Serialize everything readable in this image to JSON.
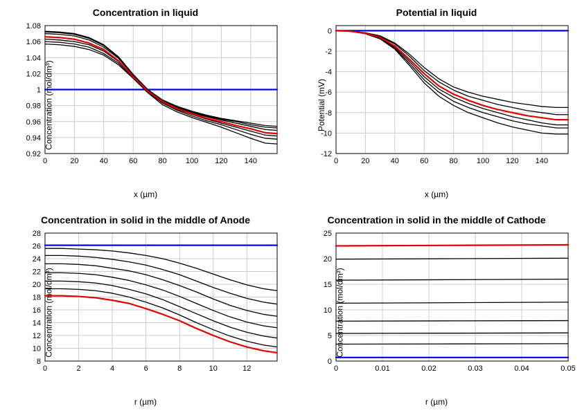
{
  "layout": {
    "cols": 2,
    "rows": 2,
    "background": "#ffffff"
  },
  "colors": {
    "grid": "#cccccc",
    "axis": "#000000",
    "blue": "#0000e0",
    "red": "#e00000",
    "black": "#000000"
  },
  "line_widths": {
    "thin": 1.3,
    "thick": 2.2
  },
  "typography": {
    "title_fontsize": 14,
    "title_weight": "bold",
    "axis_label_fontsize": 12,
    "tick_fontsize": 11,
    "font_family": "Arial, sans-serif"
  },
  "panels": [
    {
      "id": "conc_liquid",
      "title": "Concentration in liquid",
      "xlabel": "x (µm)",
      "ylabel": "Concentration (mol/dm³)",
      "xlim": [
        0,
        158
      ],
      "ylim": [
        0.92,
        1.08
      ],
      "xticks": [
        0,
        20,
        40,
        60,
        80,
        100,
        120,
        140
      ],
      "yticks": [
        0.92,
        0.94,
        0.96,
        0.98,
        1,
        1.02,
        1.04,
        1.06,
        1.08
      ],
      "series": [
        {
          "color": "blue",
          "w": "thick",
          "x": [
            0,
            158
          ],
          "y": [
            1.0,
            1.0
          ]
        },
        {
          "color": "black",
          "w": "thin",
          "x": [
            0,
            10,
            20,
            30,
            40,
            50,
            60,
            70,
            80,
            90,
            100,
            110,
            120,
            130,
            140,
            150,
            158
          ],
          "y": [
            1.057,
            1.056,
            1.054,
            1.05,
            1.043,
            1.031,
            1.014,
            0.996,
            0.981,
            0.972,
            0.965,
            0.959,
            0.953,
            0.946,
            0.939,
            0.933,
            0.932
          ]
        },
        {
          "color": "black",
          "w": "thin",
          "x": [
            0,
            10,
            20,
            30,
            40,
            50,
            60,
            70,
            80,
            90,
            100,
            110,
            120,
            130,
            140,
            150,
            158
          ],
          "y": [
            1.06,
            1.059,
            1.057,
            1.053,
            1.045,
            1.033,
            1.015,
            0.997,
            0.983,
            0.974,
            0.967,
            0.961,
            0.956,
            0.95,
            0.944,
            0.939,
            0.938
          ]
        },
        {
          "color": "black",
          "w": "thin",
          "x": [
            0,
            10,
            20,
            30,
            40,
            50,
            60,
            70,
            80,
            90,
            100,
            110,
            120,
            130,
            140,
            150,
            158
          ],
          "y": [
            1.063,
            1.062,
            1.06,
            1.056,
            1.048,
            1.035,
            1.016,
            0.998,
            0.984,
            0.975,
            0.969,
            0.963,
            0.958,
            0.953,
            0.948,
            0.943,
            0.942
          ]
        },
        {
          "color": "black",
          "w": "thin",
          "x": [
            0,
            10,
            20,
            30,
            40,
            50,
            60,
            70,
            80,
            90,
            100,
            110,
            120,
            130,
            140,
            150,
            158
          ],
          "y": [
            1.07,
            1.069,
            1.067,
            1.062,
            1.053,
            1.039,
            1.018,
            0.999,
            0.986,
            0.977,
            0.971,
            0.966,
            0.962,
            0.958,
            0.954,
            0.95,
            0.949
          ]
        },
        {
          "color": "black",
          "w": "thin",
          "x": [
            0,
            10,
            20,
            30,
            40,
            50,
            60,
            70,
            80,
            90,
            100,
            110,
            120,
            130,
            140,
            150,
            158
          ],
          "y": [
            1.072,
            1.071,
            1.069,
            1.064,
            1.055,
            1.04,
            1.019,
            0.999,
            0.986,
            0.978,
            0.972,
            0.967,
            0.963,
            0.96,
            0.956,
            0.953,
            0.952
          ]
        },
        {
          "color": "black",
          "w": "thin",
          "x": [
            0,
            10,
            20,
            30,
            40,
            50,
            60,
            70,
            80,
            90,
            100,
            110,
            120,
            130,
            140,
            150,
            158
          ],
          "y": [
            1.073,
            1.072,
            1.07,
            1.065,
            1.056,
            1.041,
            1.019,
            1.0,
            0.987,
            0.979,
            0.973,
            0.968,
            0.964,
            0.961,
            0.958,
            0.955,
            0.954
          ]
        },
        {
          "color": "red",
          "w": "thick",
          "x": [
            0,
            10,
            20,
            30,
            40,
            50,
            60,
            70,
            80,
            90,
            100,
            110,
            120,
            130,
            140,
            150,
            158
          ],
          "y": [
            1.066,
            1.065,
            1.063,
            1.058,
            1.05,
            1.036,
            1.016,
            0.998,
            0.985,
            0.976,
            0.97,
            0.964,
            0.96,
            0.955,
            0.951,
            0.946,
            0.945
          ]
        }
      ]
    },
    {
      "id": "potential_liquid",
      "title": "Potential in liquid",
      "xlabel": "x (µm)",
      "ylabel": "Potential (mV)",
      "xlim": [
        0,
        158
      ],
      "ylim": [
        -12,
        0.5
      ],
      "xticks": [
        0,
        20,
        40,
        60,
        80,
        100,
        120,
        140
      ],
      "yticks": [
        -12,
        -10,
        -8,
        -6,
        -4,
        -2,
        0
      ],
      "series": [
        {
          "color": "blue",
          "w": "thick",
          "x": [
            0,
            158
          ],
          "y": [
            0,
            0
          ]
        },
        {
          "color": "black",
          "w": "thin",
          "x": [
            0,
            10,
            20,
            30,
            40,
            50,
            60,
            70,
            80,
            90,
            100,
            110,
            120,
            130,
            140,
            150,
            158
          ],
          "y": [
            0,
            -0.05,
            -0.2,
            -0.5,
            -1.2,
            -2.3,
            -3.6,
            -4.7,
            -5.5,
            -6.0,
            -6.4,
            -6.7,
            -7.0,
            -7.2,
            -7.4,
            -7.5,
            -7.5
          ]
        },
        {
          "color": "black",
          "w": "thin",
          "x": [
            0,
            10,
            20,
            30,
            40,
            50,
            60,
            70,
            80,
            90,
            100,
            110,
            120,
            130,
            140,
            150,
            158
          ],
          "y": [
            0,
            -0.05,
            -0.2,
            -0.55,
            -1.3,
            -2.5,
            -3.9,
            -5.0,
            -5.8,
            -6.4,
            -6.8,
            -7.2,
            -7.5,
            -7.8,
            -8.0,
            -8.2,
            -8.2
          ]
        },
        {
          "color": "black",
          "w": "thin",
          "x": [
            0,
            10,
            20,
            30,
            40,
            50,
            60,
            70,
            80,
            90,
            100,
            110,
            120,
            130,
            140,
            150,
            158
          ],
          "y": [
            0,
            -0.06,
            -0.25,
            -0.7,
            -1.6,
            -3.0,
            -4.5,
            -5.7,
            -6.5,
            -7.1,
            -7.6,
            -8.0,
            -8.4,
            -8.7,
            -9.0,
            -9.2,
            -9.2
          ]
        },
        {
          "color": "black",
          "w": "thin",
          "x": [
            0,
            10,
            20,
            30,
            40,
            50,
            60,
            70,
            80,
            90,
            100,
            110,
            120,
            130,
            140,
            150,
            158
          ],
          "y": [
            0,
            -0.06,
            -0.27,
            -0.75,
            -1.7,
            -3.2,
            -4.8,
            -6.0,
            -6.9,
            -7.5,
            -8.0,
            -8.4,
            -8.8,
            -9.1,
            -9.3,
            -9.5,
            -9.5
          ]
        },
        {
          "color": "black",
          "w": "thin",
          "x": [
            0,
            10,
            20,
            30,
            40,
            50,
            60,
            70,
            80,
            90,
            100,
            110,
            120,
            130,
            140,
            150,
            158
          ],
          "y": [
            0,
            -0.07,
            -0.3,
            -0.8,
            -1.8,
            -3.4,
            -5.1,
            -6.4,
            -7.3,
            -8.0,
            -8.5,
            -9.0,
            -9.4,
            -9.7,
            -10.0,
            -10.1,
            -10.1
          ]
        },
        {
          "color": "red",
          "w": "thick",
          "x": [
            0,
            10,
            20,
            30,
            40,
            50,
            60,
            70,
            80,
            90,
            100,
            110,
            120,
            130,
            140,
            150,
            158
          ],
          "y": [
            0,
            -0.06,
            -0.25,
            -0.65,
            -1.5,
            -2.8,
            -4.2,
            -5.4,
            -6.2,
            -6.8,
            -7.3,
            -7.7,
            -8.0,
            -8.3,
            -8.5,
            -8.7,
            -8.7
          ]
        }
      ]
    },
    {
      "id": "conc_solid_anode",
      "title": "Concentration in solid in the middle of Anode",
      "xlabel": "r (µm)",
      "ylabel": "Concentration (mol/dm³)",
      "xlim": [
        0,
        13.8
      ],
      "ylim": [
        8,
        28
      ],
      "xticks": [
        0,
        2,
        4,
        6,
        8,
        10,
        12
      ],
      "yticks": [
        8,
        10,
        12,
        14,
        16,
        18,
        20,
        22,
        24,
        26,
        28
      ],
      "series": [
        {
          "color": "blue",
          "w": "thick",
          "x": [
            0,
            13.8
          ],
          "y": [
            26.1,
            26.1
          ]
        },
        {
          "color": "black",
          "w": "thin",
          "x": [
            0,
            1,
            2,
            3,
            4,
            5,
            6,
            7,
            8,
            9,
            10,
            11,
            12,
            13,
            13.8
          ],
          "y": [
            25.6,
            25.6,
            25.5,
            25.4,
            25.2,
            24.9,
            24.5,
            24.0,
            23.3,
            22.5,
            21.6,
            20.7,
            19.9,
            19.3,
            19.0
          ]
        },
        {
          "color": "black",
          "w": "thin",
          "x": [
            0,
            1,
            2,
            3,
            4,
            5,
            6,
            7,
            8,
            9,
            10,
            11,
            12,
            13,
            13.8
          ],
          "y": [
            24.5,
            24.5,
            24.4,
            24.2,
            23.9,
            23.5,
            23.0,
            22.3,
            21.5,
            20.5,
            19.5,
            18.6,
            17.8,
            17.2,
            16.9
          ]
        },
        {
          "color": "black",
          "w": "thin",
          "x": [
            0,
            1,
            2,
            3,
            4,
            5,
            6,
            7,
            8,
            9,
            10,
            11,
            12,
            13,
            13.8
          ],
          "y": [
            23.2,
            23.2,
            23.1,
            22.9,
            22.5,
            22.1,
            21.5,
            20.7,
            19.8,
            18.8,
            17.7,
            16.7,
            15.9,
            15.3,
            15.0
          ]
        },
        {
          "color": "black",
          "w": "thin",
          "x": [
            0,
            1,
            2,
            3,
            4,
            5,
            6,
            7,
            8,
            9,
            10,
            11,
            12,
            13,
            13.8
          ],
          "y": [
            21.8,
            21.8,
            21.7,
            21.5,
            21.1,
            20.6,
            19.9,
            19.1,
            18.1,
            17.0,
            15.9,
            14.9,
            14.1,
            13.5,
            13.2
          ]
        },
        {
          "color": "black",
          "w": "thin",
          "x": [
            0,
            1,
            2,
            3,
            4,
            5,
            6,
            7,
            8,
            9,
            10,
            11,
            12,
            13,
            13.8
          ],
          "y": [
            20.5,
            20.5,
            20.4,
            20.2,
            19.8,
            19.2,
            18.5,
            17.6,
            16.5,
            15.4,
            14.3,
            13.3,
            12.5,
            11.9,
            11.6
          ]
        },
        {
          "color": "black",
          "w": "thin",
          "x": [
            0,
            1,
            2,
            3,
            4,
            5,
            6,
            7,
            8,
            9,
            10,
            11,
            12,
            13,
            13.8
          ],
          "y": [
            19.3,
            19.3,
            19.2,
            19.0,
            18.6,
            18.0,
            17.2,
            16.3,
            15.2,
            14.0,
            12.9,
            11.9,
            11.1,
            10.5,
            10.2
          ]
        },
        {
          "color": "red",
          "w": "thick",
          "x": [
            0,
            1,
            2,
            3,
            4,
            5,
            6,
            7,
            8,
            9,
            10,
            11,
            12,
            13,
            13.8
          ],
          "y": [
            18.2,
            18.2,
            18.1,
            17.9,
            17.5,
            17.0,
            16.2,
            15.3,
            14.3,
            13.1,
            12.0,
            11.0,
            10.2,
            9.6,
            9.3
          ]
        }
      ]
    },
    {
      "id": "conc_solid_cathode",
      "title": "Concentration in solid in the middle of Cathode",
      "xlabel": "r (µm)",
      "ylabel": "Concentration (mol/dm³)",
      "xlim": [
        0,
        0.05
      ],
      "ylim": [
        0,
        25
      ],
      "xticks": [
        0,
        0.01,
        0.02,
        0.03,
        0.04,
        0.05
      ],
      "yticks": [
        0,
        5,
        10,
        15,
        20,
        25
      ],
      "series": [
        {
          "color": "blue",
          "w": "thick",
          "x": [
            0,
            0.05
          ],
          "y": [
            0.7,
            0.7
          ]
        },
        {
          "color": "black",
          "w": "thin",
          "x": [
            0,
            0.025,
            0.05
          ],
          "y": [
            3.3,
            3.35,
            3.4
          ]
        },
        {
          "color": "black",
          "w": "thin",
          "x": [
            0,
            0.025,
            0.05
          ],
          "y": [
            5.4,
            5.45,
            5.5
          ]
        },
        {
          "color": "black",
          "w": "thin",
          "x": [
            0,
            0.025,
            0.05
          ],
          "y": [
            7.8,
            7.85,
            7.9
          ]
        },
        {
          "color": "black",
          "w": "thin",
          "x": [
            0,
            0.025,
            0.05
          ],
          "y": [
            11.3,
            11.4,
            11.5
          ]
        },
        {
          "color": "black",
          "w": "thin",
          "x": [
            0,
            0.025,
            0.05
          ],
          "y": [
            15.8,
            15.9,
            16.0
          ]
        },
        {
          "color": "black",
          "w": "thin",
          "x": [
            0,
            0.025,
            0.05
          ],
          "y": [
            19.9,
            20.0,
            20.1
          ]
        },
        {
          "color": "red",
          "w": "thick",
          "x": [
            0,
            0.025,
            0.05
          ],
          "y": [
            22.5,
            22.6,
            22.7
          ]
        }
      ]
    }
  ]
}
